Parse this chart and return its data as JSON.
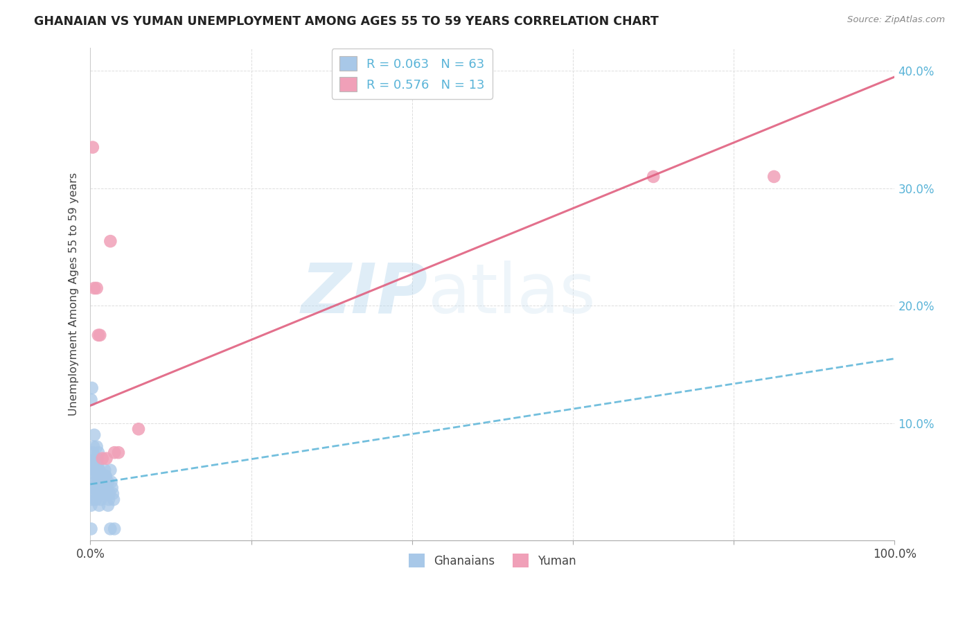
{
  "title": "GHANAIAN VS YUMAN UNEMPLOYMENT AMONG AGES 55 TO 59 YEARS CORRELATION CHART",
  "source": "Source: ZipAtlas.com",
  "ylabel": "Unemployment Among Ages 55 to 59 years",
  "xlim": [
    0,
    1.0
  ],
  "ylim": [
    0,
    0.42
  ],
  "y_ticks": [
    0.0,
    0.1,
    0.2,
    0.3,
    0.4
  ],
  "right_y_tick_labels": [
    "",
    "10.0%",
    "20.0%",
    "30.0%",
    "40.0%"
  ],
  "x_ticks": [
    0.0,
    0.2,
    0.4,
    0.6,
    0.8,
    1.0
  ],
  "x_tick_labels": [
    "0.0%",
    "",
    "",
    "",
    "",
    "100.0%"
  ],
  "ghanaian_color": "#a8c8e8",
  "yuman_color": "#f0a0b8",
  "ghanaian_line_color": "#5ab4d8",
  "yuman_line_color": "#e06080",
  "R_ghanaian": 0.063,
  "N_ghanaian": 63,
  "R_yuman": 0.576,
  "N_yuman": 13,
  "legend_label_ghanaian": "Ghanaians",
  "legend_label_yuman": "Yuman",
  "watermark_zip": "ZIP",
  "watermark_atlas": "atlas",
  "ghanaian_line_start_y": 0.048,
  "ghanaian_line_end_y": 0.155,
  "yuman_line_start_y": 0.115,
  "yuman_line_end_y": 0.395,
  "ghanaian_x": [
    0.002,
    0.003,
    0.003,
    0.004,
    0.005,
    0.006,
    0.007,
    0.008,
    0.009,
    0.01,
    0.01,
    0.011,
    0.012,
    0.013,
    0.014,
    0.015,
    0.016,
    0.017,
    0.018,
    0.019,
    0.02,
    0.021,
    0.022,
    0.023,
    0.024,
    0.025,
    0.026,
    0.027,
    0.028,
    0.029,
    0.001,
    0.002,
    0.003,
    0.004,
    0.005,
    0.006,
    0.007,
    0.008,
    0.009,
    0.01,
    0.011,
    0.012,
    0.013,
    0.014,
    0.015,
    0.016,
    0.017,
    0.018,
    0.019,
    0.02,
    0.001,
    0.002,
    0.003,
    0.005,
    0.007,
    0.009,
    0.011,
    0.013,
    0.018,
    0.022,
    0.001,
    0.025,
    0.03
  ],
  "ghanaian_y": [
    0.055,
    0.065,
    0.075,
    0.045,
    0.06,
    0.05,
    0.07,
    0.08,
    0.065,
    0.055,
    0.075,
    0.06,
    0.05,
    0.045,
    0.055,
    0.04,
    0.05,
    0.045,
    0.05,
    0.055,
    0.04,
    0.045,
    0.05,
    0.035,
    0.04,
    0.06,
    0.05,
    0.045,
    0.04,
    0.035,
    0.12,
    0.13,
    0.07,
    0.08,
    0.09,
    0.06,
    0.065,
    0.055,
    0.07,
    0.05,
    0.06,
    0.045,
    0.055,
    0.05,
    0.04,
    0.055,
    0.045,
    0.06,
    0.055,
    0.04,
    0.03,
    0.035,
    0.04,
    0.045,
    0.035,
    0.04,
    0.03,
    0.035,
    0.04,
    0.03,
    0.01,
    0.01,
    0.01
  ],
  "yuman_x": [
    0.003,
    0.005,
    0.008,
    0.01,
    0.012,
    0.015,
    0.02,
    0.025,
    0.03,
    0.035,
    0.06,
    0.7,
    0.85
  ],
  "yuman_y": [
    0.335,
    0.215,
    0.215,
    0.175,
    0.175,
    0.07,
    0.07,
    0.255,
    0.075,
    0.075,
    0.095,
    0.31,
    0.31
  ]
}
